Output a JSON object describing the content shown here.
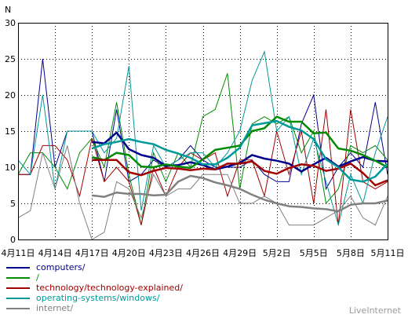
{
  "chart_data": {
    "type": "line",
    "ylabel": "N",
    "ylim": [
      0,
      30
    ],
    "yticks": [
      0,
      5,
      10,
      15,
      20,
      25,
      30
    ],
    "grid": true,
    "legend_position": "bottom-left",
    "x_start": "4月11日",
    "x_end": "5月11日",
    "xtick_labels": [
      "4月11日",
      "4月14日",
      "4月17日",
      "4月20日",
      "4月23日",
      "4月26日",
      "4月29日",
      "5月2日",
      "5月5日",
      "5月8日",
      "5月11日"
    ],
    "series": [
      {
        "name": "computers/",
        "color": "#00008b",
        "values": [
          9,
          9,
          25,
          10,
          15,
          15,
          15,
          8,
          18,
          8,
          9,
          11,
          10,
          11,
          13,
          11,
          10,
          10,
          10,
          11,
          9,
          8,
          8,
          16,
          20,
          7,
          10,
          12,
          10,
          19,
          9
        ],
        "average": [
          null,
          null,
          null,
          null,
          null,
          null,
          13.5,
          13.3,
          14.8,
          12.5,
          11.7,
          11.3,
          10.2,
          10.3,
          10.7,
          10.3,
          9.7,
          10.1,
          10.6,
          11.7,
          11.2,
          10.9,
          10.5,
          9.4,
          10.4,
          11.3,
          10.1,
          10.8,
          11.4,
          10.9,
          10.8
        ]
      },
      {
        "name": "/",
        "color": "#008b00",
        "values": [
          9,
          12,
          12,
          10,
          7,
          12,
          14,
          10,
          19,
          9,
          2,
          12,
          8,
          12,
          10,
          17,
          18,
          23,
          7,
          16,
          17,
          16,
          17,
          12,
          15,
          5,
          7,
          13,
          12,
          13,
          11
        ],
        "average": [
          null,
          null,
          null,
          null,
          null,
          null,
          11.4,
          11.0,
          12.0,
          11.7,
          10.1,
          10.0,
          10.4,
          10.1,
          9.9,
          11.1,
          12.4,
          12.7,
          13.0,
          15.0,
          15.4,
          17.0,
          16.3,
          16.3,
          14.7,
          14.8,
          12.6,
          12.3,
          11.7,
          10.9,
          10.0
        ]
      },
      {
        "name": "technology/technology-explained/",
        "color": "#a00000",
        "values": [
          9,
          9,
          13,
          13,
          11,
          6,
          14,
          8,
          10,
          8,
          2,
          10,
          6,
          10,
          12,
          11,
          12,
          6,
          11,
          11,
          6,
          15,
          9,
          15,
          5,
          18,
          2,
          18,
          8,
          7,
          8
        ],
        "average": [
          null,
          null,
          null,
          null,
          null,
          null,
          11.0,
          11.0,
          11.0,
          9.3,
          8.9,
          9.5,
          9.9,
          9.8,
          9.6,
          9.8,
          9.7,
          10.5,
          10.5,
          10.8,
          9.5,
          9.1,
          9.9,
          10.4,
          10.2,
          9.5,
          9.8,
          10.5,
          9.2,
          7.5,
          8.2
        ]
      },
      {
        "name": "operating-systems/windows/",
        "color": "#009999",
        "values": [
          11,
          9,
          20,
          7,
          15,
          15,
          15,
          12,
          14,
          24,
          4,
          13,
          10,
          11,
          12,
          12,
          10,
          12,
          15,
          22,
          26,
          15,
          17,
          9,
          14,
          8,
          2,
          9,
          5,
          12,
          17
        ],
        "average": [
          null,
          null,
          null,
          null,
          null,
          null,
          12.6,
          13.2,
          13.5,
          13.9,
          13.5,
          13.2,
          12.4,
          11.9,
          11.3,
          10.4,
          10.4,
          11.3,
          12.7,
          15.8,
          16.1,
          16.4,
          15.6,
          15.1,
          13.9,
          11.1,
          10.0,
          8.3,
          8.0,
          8.7,
          10.5
        ]
      },
      {
        "name": "internet/",
        "color": "#808080",
        "values": [
          3,
          4,
          12,
          7,
          13,
          5,
          0,
          1,
          8,
          7,
          3,
          9,
          6,
          7,
          7,
          9,
          9,
          9,
          5,
          5,
          6,
          5,
          2,
          2,
          2,
          3,
          4,
          6,
          3,
          2,
          6
        ],
        "average": [
          null,
          null,
          null,
          null,
          null,
          null,
          6.1,
          5.9,
          6.5,
          6.3,
          6.3,
          6.1,
          6.2,
          8.0,
          8.8,
          8.5,
          7.9,
          7.5,
          7.0,
          6.2,
          5.5,
          5.0,
          4.6,
          4.5,
          4.3,
          4.2,
          3.9,
          4.8,
          5.0,
          5.0,
          5.4
        ]
      }
    ]
  },
  "footer": {
    "brand": "LiveInternet"
  }
}
